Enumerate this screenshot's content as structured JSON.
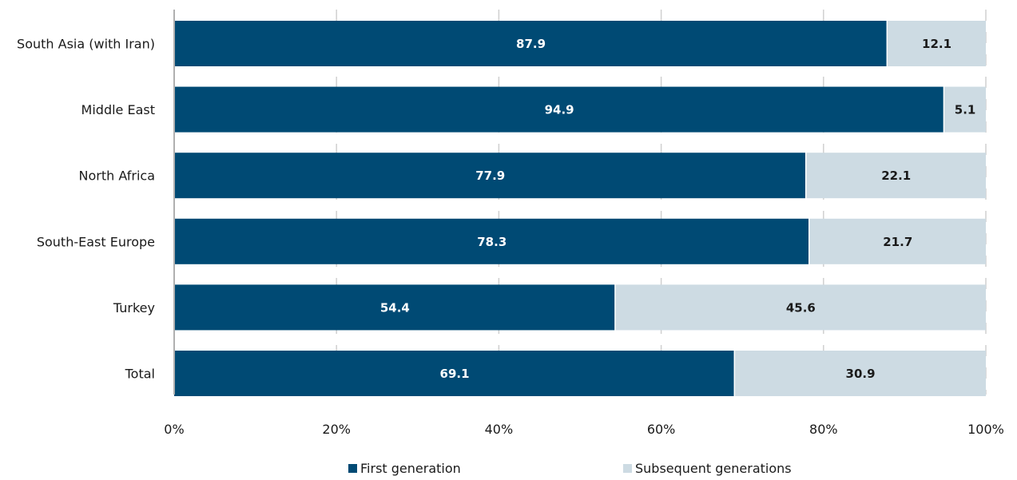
{
  "chart_data": {
    "type": "bar",
    "orientation": "horizontal",
    "stacked": true,
    "categories": [
      "South Asia (with Iran)",
      "Middle East",
      "North Africa",
      "South-East Europe",
      "Turkey",
      "Total"
    ],
    "series": [
      {
        "name": "First generation",
        "values": [
          87.9,
          94.9,
          77.9,
          78.3,
          54.4,
          69.1
        ],
        "color": "#004a74"
      },
      {
        "name": "Subsequent generations",
        "values": [
          12.1,
          5.1,
          22.1,
          21.7,
          45.6,
          30.9
        ],
        "color": "#cddbe3"
      }
    ],
    "xlim": [
      0,
      100
    ],
    "x_ticks": [
      0,
      20,
      40,
      60,
      80,
      100
    ],
    "x_tick_labels": [
      "0%",
      "20%",
      "40%",
      "60%",
      "80%",
      "100%"
    ],
    "grid": true,
    "legend_position": "bottom",
    "data_label_colors": [
      "#ffffff",
      "#1a1a1a"
    ]
  }
}
